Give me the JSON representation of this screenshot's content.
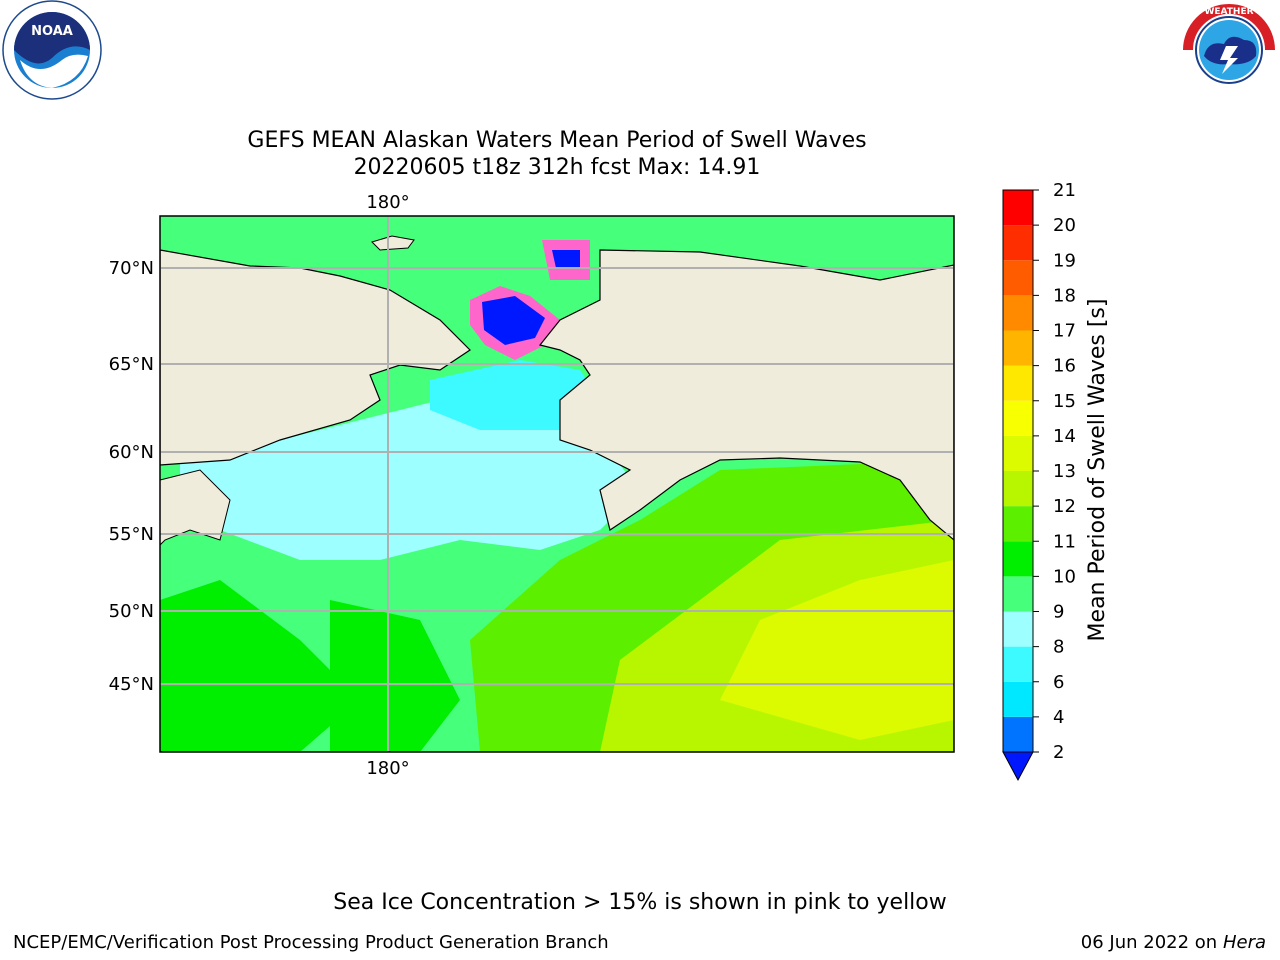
{
  "logos": {
    "left_name": "NOAA",
    "right_name": "NATIONAL WEATHER SERVICE"
  },
  "title": {
    "line1": "GEFS MEAN Alaskan Waters Mean Period of Swell Waves",
    "line2": "20220605 t18z 312h fcst   Max: 14.91"
  },
  "map": {
    "lon_labels": [
      "180°"
    ],
    "lat_labels": [
      "70°N",
      "65°N",
      "60°N",
      "55°N",
      "50°N",
      "45°N"
    ],
    "land_color": "#efecdc",
    "grid_color": "#b0b0b0"
  },
  "colorbar": {
    "label": "Mean Period of Swell Waves [s]",
    "ticks": [
      "2",
      "4",
      "6",
      "8",
      "9",
      "10",
      "11",
      "12",
      "13",
      "14",
      "15",
      "16",
      "17",
      "18",
      "19",
      "20",
      "21"
    ],
    "colors": [
      "#0074ff",
      "#00e8ff",
      "#3cfaff",
      "#9dffff",
      "#46ff7a",
      "#00ee00",
      "#5cf000",
      "#b8f600",
      "#dcfa00",
      "#f8ff00",
      "#ffe800",
      "#ffb400",
      "#ff8a00",
      "#ff5c00",
      "#ff2e00",
      "#ff0000"
    ],
    "extend_color": "#0018ff"
  },
  "note": "Sea Ice Concentration > 15% is shown in pink to yellow",
  "footer": {
    "left": "NCEP/EMC/Verification Post Processing Product Generation Branch",
    "date": "06 Jun 2022 on",
    "machine": "Hera"
  }
}
